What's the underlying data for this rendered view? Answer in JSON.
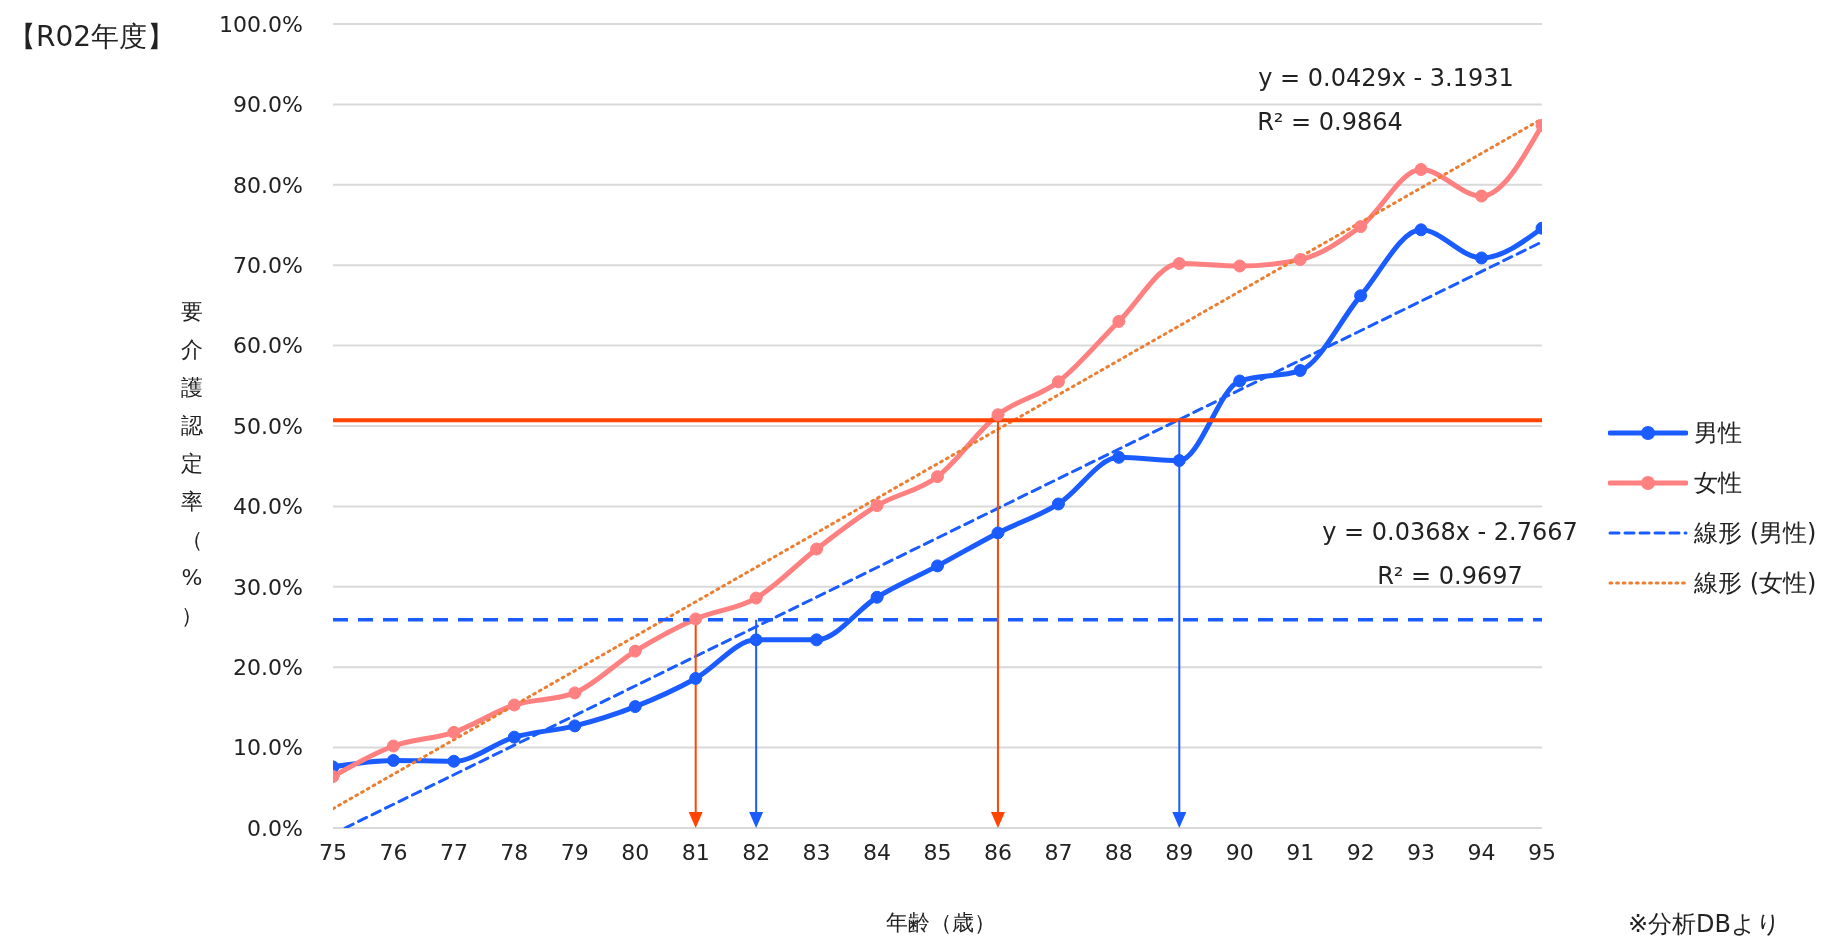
{
  "chart_data": {
    "type": "line",
    "title": "【R02年度】",
    "xlabel": "年齢（歳）",
    "ylabel": "要介護認定率（%）",
    "x": [
      75,
      76,
      77,
      78,
      79,
      80,
      81,
      82,
      83,
      84,
      85,
      86,
      87,
      88,
      89,
      90,
      91,
      92,
      93,
      94,
      95
    ],
    "series": [
      {
        "name": "男性",
        "color": "#1a5cff",
        "values": [
          7.6,
          8.4,
          8.3,
          11.3,
          12.7,
          15.1,
          18.6,
          23.4,
          23.4,
          28.7,
          32.6,
          36.7,
          40.3,
          46.1,
          45.7,
          55.6,
          56.9,
          66.2,
          74.4,
          70.9,
          74.6
        ]
      },
      {
        "name": "女性",
        "color": "#ff8080",
        "values": [
          6.4,
          10.2,
          11.9,
          15.3,
          16.8,
          22.0,
          26.0,
          28.6,
          34.7,
          40.1,
          43.7,
          51.4,
          55.5,
          63.0,
          70.2,
          69.9,
          70.7,
          74.8,
          81.9,
          78.6,
          87.4
        ]
      },
      {
        "name": "線形 (男性)",
        "type": "line",
        "color": "#1a5cff",
        "x": [
          75.2,
          95
        ],
        "values": [
          0,
          72.9
        ],
        "line_style": "dashed",
        "marker": "none"
      },
      {
        "name": "線形 (女性)",
        "type": "line",
        "color": "#ed7d31",
        "x": [
          75,
          95
        ],
        "values": [
          2.4,
          88.2
        ],
        "line_style": "dotted",
        "marker": "none"
      }
    ],
    "xlim": [
      75,
      95
    ],
    "xticks": [
      75,
      76,
      77,
      78,
      79,
      80,
      81,
      82,
      83,
      84,
      85,
      86,
      87,
      88,
      89,
      90,
      91,
      92,
      93,
      94,
      95
    ],
    "ylim": [
      0,
      100
    ],
    "yticks": [
      {
        "value": 0,
        "label": "0.0%"
      },
      {
        "value": 10,
        "label": "10.0%"
      },
      {
        "value": 20,
        "label": "20.0%"
      },
      {
        "value": 30,
        "label": "30.0%"
      },
      {
        "value": 40,
        "label": "40.0%"
      },
      {
        "value": 50,
        "label": "50.0%"
      },
      {
        "value": 60,
        "label": "60.0%"
      },
      {
        "value": 70,
        "label": "70.0%"
      },
      {
        "value": 80,
        "label": "80.0%"
      },
      {
        "value": 90,
        "label": "90.0%"
      },
      {
        "value": 100,
        "label": "100.0%"
      }
    ],
    "ref_lines": [
      {
        "axis": "y",
        "value": 50.7,
        "color": "#ff4500",
        "line_style": "solid"
      },
      {
        "axis": "y",
        "value": 25.9,
        "color": "#1a5cff",
        "line_style": "dashed"
      },
      {
        "axis": "x",
        "value": 81,
        "color": "#ff4500",
        "line_style": "solid"
      },
      {
        "axis": "x",
        "value": 82,
        "color": "#1a5cff",
        "line_style": "solid"
      },
      {
        "axis": "x",
        "value": 86,
        "color": "#ff4500",
        "line_style": "solid"
      },
      {
        "axis": "x",
        "value": 89,
        "color": "#1a5cff",
        "line_style": "solid"
      }
    ],
    "annotations": [
      "y = 0.0429x - 3.1931",
      "R² = 0.9864",
      "y = 0.0368x - 2.7667",
      "R² = 0.9697",
      "※分析DBより"
    ],
    "grid": "y",
    "legend": "right",
    "marker": "circle",
    "line_style": "solid"
  }
}
